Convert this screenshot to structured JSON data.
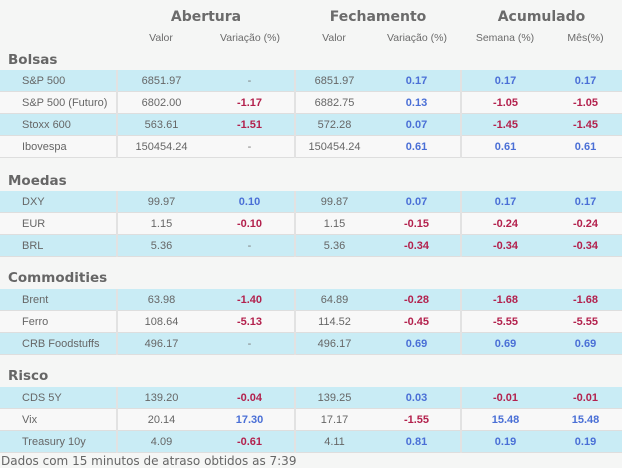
{
  "header": {
    "groups": [
      "Abertura",
      "Fechamento",
      "Acumulado"
    ],
    "columns": [
      "Valor",
      "Variação (%)",
      "Valor",
      "Variação (%)",
      "Semana (%)",
      "Mês(%)"
    ]
  },
  "colors": {
    "positive": "#4a6fd6",
    "negative": "#b3214d",
    "neutral": "#777777",
    "row_alt": "#c9ecf5",
    "row_plain": "#f8f8f8"
  },
  "sections": [
    {
      "title": "Bolsas",
      "rows": [
        [
          "S&P 500",
          "6851.97",
          "-",
          "6851.97",
          "0.17",
          "0.17",
          "0.17"
        ],
        [
          "S&P 500 (Futuro)",
          "6802.00",
          "-1.17",
          "6882.75",
          "0.13",
          "-1.05",
          "-1.05"
        ],
        [
          "Stoxx 600",
          "563.61",
          "-1.51",
          "572.28",
          "0.07",
          "-1.45",
          "-1.45"
        ],
        [
          "Ibovespa",
          "150454.24",
          "-",
          "150454.24",
          "0.61",
          "0.61",
          "0.61"
        ]
      ]
    },
    {
      "title": "Moedas",
      "rows": [
        [
          "DXY",
          "99.97",
          "0.10",
          "99.87",
          "0.07",
          "0.17",
          "0.17"
        ],
        [
          "EUR",
          "1.15",
          "-0.10",
          "1.15",
          "-0.15",
          "-0.24",
          "-0.24"
        ],
        [
          "BRL",
          "5.36",
          "-",
          "5.36",
          "-0.34",
          "-0.34",
          "-0.34"
        ]
      ]
    },
    {
      "title": "Commodities",
      "rows": [
        [
          "Brent",
          "63.98",
          "-1.40",
          "64.89",
          "-0.28",
          "-1.68",
          "-1.68"
        ],
        [
          "Ferro",
          "108.64",
          "-5.13",
          "114.52",
          "-0.45",
          "-5.55",
          "-5.55"
        ],
        [
          "CRB Foodstuffs",
          "496.17",
          "-",
          "496.17",
          "0.69",
          "0.69",
          "0.69"
        ]
      ]
    },
    {
      "title": "Risco",
      "rows": [
        [
          "CDS 5Y",
          "139.20",
          "-0.04",
          "139.25",
          "0.03",
          "-0.01",
          "-0.01"
        ],
        [
          "Vix",
          "20.14",
          "17.30",
          "17.17",
          "-1.55",
          "15.48",
          "15.48"
        ],
        [
          "Treasury 10y",
          "4.09",
          "-0.61",
          "4.11",
          "0.81",
          "0.19",
          "0.19"
        ]
      ]
    }
  ],
  "footer": "Dados com 15 minutos de atraso obtidos as 7:39"
}
